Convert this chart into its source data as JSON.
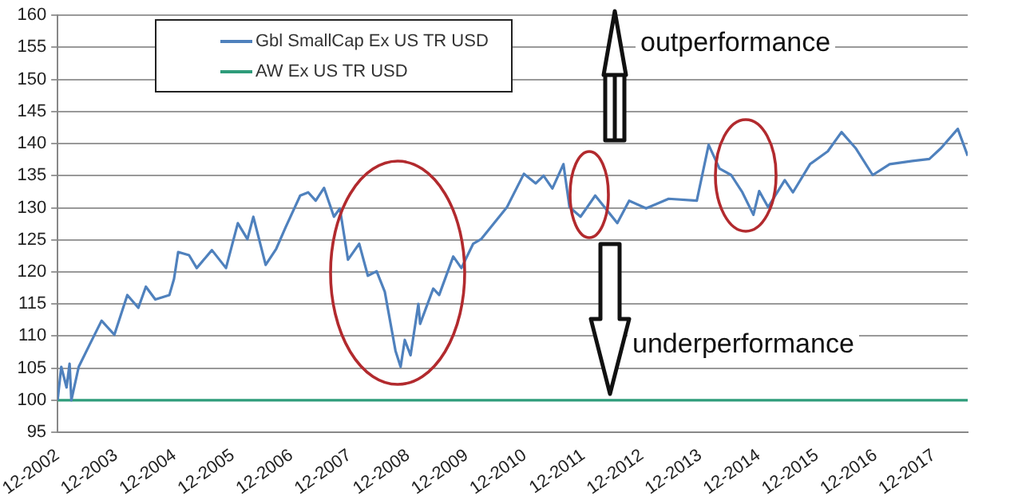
{
  "chart_data": {
    "type": "line",
    "legend": "top left",
    "grid": "y",
    "marker": "none",
    "line_style": "solid",
    "xlim": [
      "2002-12",
      "2018-07"
    ],
    "xticks": [
      {
        "value": "2002-12",
        "label": "12-2002"
      },
      {
        "value": "2003-12",
        "label": "12-2003"
      },
      {
        "value": "2004-12",
        "label": "12-2004"
      },
      {
        "value": "2005-12",
        "label": "12-2005"
      },
      {
        "value": "2006-12",
        "label": "12-2006"
      },
      {
        "value": "2007-12",
        "label": "12-2007"
      },
      {
        "value": "2008-12",
        "label": "12-2008"
      },
      {
        "value": "2009-12",
        "label": "12-2009"
      },
      {
        "value": "2010-12",
        "label": "12-2010"
      },
      {
        "value": "2011-12",
        "label": "12-2011"
      },
      {
        "value": "2012-12",
        "label": "12-2012"
      },
      {
        "value": "2013-12",
        "label": "12-2013"
      },
      {
        "value": "2014-12",
        "label": "12-2014"
      },
      {
        "value": "2015-12",
        "label": "12-2015"
      },
      {
        "value": "2016-12",
        "label": "12-2016"
      },
      {
        "value": "2017-12",
        "label": "12-2017"
      }
    ],
    "ylim": [
      95,
      160
    ],
    "yticks": [
      95,
      100,
      105,
      110,
      115,
      120,
      125,
      130,
      135,
      140,
      145,
      150,
      155,
      160
    ],
    "annotations": [
      "outperformance",
      "underperformance"
    ],
    "series": [
      {
        "name": "Gbl SmallCap Ex US TR USD",
        "color": "#4f81bd",
        "x": [
          "2002-12-01",
          "2002-12-24",
          "2003-01-26",
          "2003-02-14",
          "2003-02-25",
          "2003-04-12",
          "2003-06-20",
          "2003-09-02",
          "2003-11-21",
          "2004-02-10",
          "2004-04-19",
          "2004-06-05",
          "2004-08-03",
          "2004-10-30",
          "2004-11-28",
          "2004-12-24",
          "2005-03-02",
          "2005-04-19",
          "2005-07-23",
          "2005-10-19",
          "2006-01-01",
          "2006-03-02",
          "2006-04-08",
          "2006-06-24",
          "2006-08-29",
          "2006-10-26",
          "2007-01-26",
          "2007-03-17",
          "2007-05-03",
          "2007-06-24",
          "2007-08-25",
          "2007-10-01",
          "2007-11-21",
          "2008-01-30",
          "2008-03-24",
          "2008-05-18",
          "2008-07-08",
          "2008-09-13",
          "2008-10-15",
          "2008-11-10",
          "2008-12-16",
          "2009-02-03",
          "2009-02-14",
          "2009-05-07",
          "2009-06-13",
          "2009-09-09",
          "2009-10-30",
          "2010-01-12",
          "2010-03-02",
          "2010-08-11",
          "2010-11-25",
          "2011-02-07",
          "2011-03-28",
          "2011-05-22",
          "2011-07-30",
          "2011-09-06",
          "2011-11-14",
          "2012-02-14",
          "2012-07-01",
          "2012-09-13",
          "2012-12-28",
          "2013-05-18",
          "2013-11-10",
          "2014-01-23",
          "2014-04-01",
          "2014-06-13",
          "2014-08-22",
          "2014-10-30",
          "2014-12-05",
          "2015-01-30",
          "2015-05-14",
          "2015-07-04",
          "2015-10-19",
          "2016-02-07",
          "2016-05-03",
          "2016-07-30",
          "2016-11-14",
          "2017-02-28",
          "2017-07-19",
          "2017-11-03",
          "2018-01-15",
          "2018-04-30",
          "2018-07-01"
        ],
        "values": [
          100,
          105.2,
          102,
          105.7,
          100,
          105.2,
          108.7,
          112.4,
          110.2,
          116.4,
          114.4,
          117.7,
          115.7,
          116.4,
          118.9,
          123.1,
          122.6,
          120.6,
          123.4,
          120.6,
          127.6,
          125.1,
          128.6,
          121.1,
          123.6,
          126.9,
          131.9,
          132.4,
          131.1,
          133.1,
          128.6,
          129.9,
          121.9,
          124.4,
          119.4,
          120.1,
          116.9,
          107.7,
          105.2,
          109.4,
          107,
          115,
          111.9,
          117.4,
          116.4,
          122.4,
          120.6,
          124.4,
          125.1,
          130.1,
          135.3,
          133.8,
          135,
          133,
          136.8,
          130.1,
          128.6,
          131.9,
          127.6,
          131.1,
          129.9,
          131.4,
          131.1,
          139.8,
          136.1,
          135.1,
          132.4,
          128.9,
          132.6,
          130.1,
          134.3,
          132.4,
          136.8,
          138.8,
          141.8,
          139.3,
          135.1,
          136.8,
          137.3,
          137.6,
          139.3,
          142.3,
          138.1
        ]
      },
      {
        "name": "AW Ex US TR USD",
        "color": "#2e9c7a",
        "x": [
          "2002-12-01",
          "2018-07-01"
        ],
        "values": [
          100,
          100
        ]
      }
    ]
  }
}
